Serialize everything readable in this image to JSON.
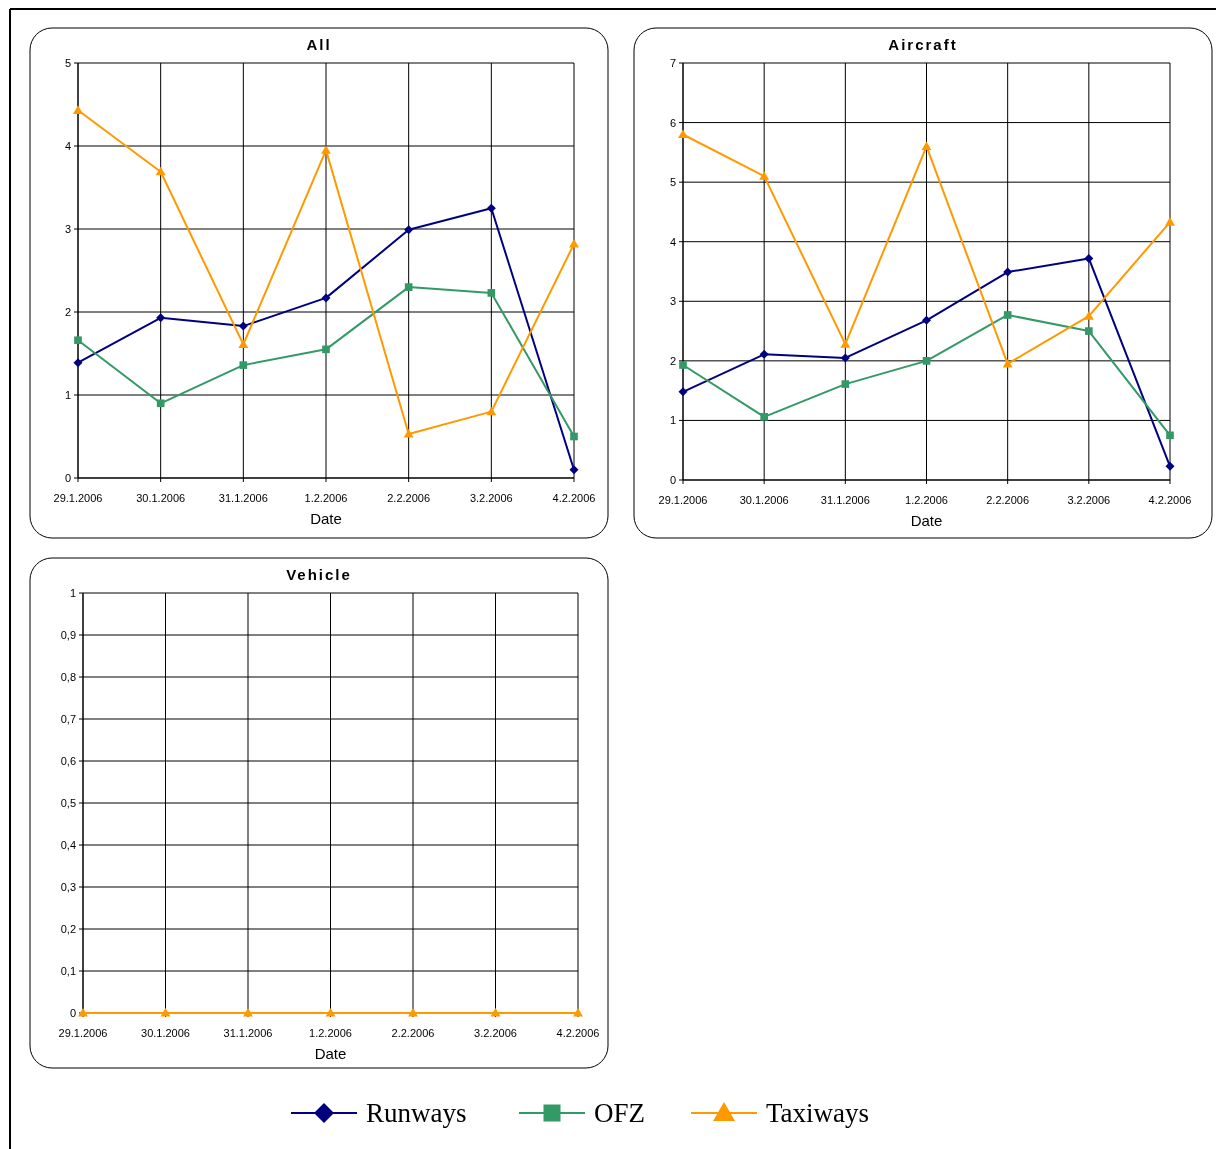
{
  "chart_data": [
    {
      "type": "line",
      "title": "All",
      "xlabel": "Date",
      "categories": [
        "29.1.2006",
        "30.1.2006",
        "31.1.2006",
        "1.2.2006",
        "2.2.2006",
        "3.2.2006",
        "4.2.2006"
      ],
      "ylim": [
        0,
        5
      ],
      "yticks": [
        0,
        1,
        2,
        3,
        4,
        5
      ],
      "grid": true,
      "legend": "bottom",
      "series": [
        {
          "name": "Runways",
          "color": "#000080",
          "marker": "diamond",
          "values": [
            1.39,
            1.93,
            1.83,
            2.17,
            2.99,
            3.25,
            0.1
          ]
        },
        {
          "name": "OFZ",
          "color": "#339966",
          "marker": "square",
          "values": [
            1.66,
            0.9,
            1.36,
            1.55,
            2.3,
            2.23,
            0.5
          ]
        },
        {
          "name": "Taxiways",
          "color": "#ff9900",
          "marker": "triangle",
          "values": [
            4.43,
            3.69,
            1.61,
            3.95,
            0.53,
            0.8,
            2.82
          ]
        }
      ]
    },
    {
      "type": "line",
      "title": "Aircraft",
      "xlabel": "Date",
      "categories": [
        "29.1.2006",
        "30.1.2006",
        "31.1.2006",
        "1.2.2006",
        "2.2.2006",
        "3.2.2006",
        "4.2.2006"
      ],
      "ylim": [
        0,
        7
      ],
      "yticks": [
        0,
        1,
        2,
        3,
        4,
        5,
        6,
        7
      ],
      "grid": true,
      "series": [
        {
          "color": "#000080",
          "marker": "diamond",
          "values": [
            1.48,
            2.11,
            2.05,
            2.68,
            3.49,
            3.72,
            0.23
          ]
        },
        {
          "color": "#339966",
          "marker": "square",
          "values": [
            1.93,
            1.06,
            1.61,
            2.0,
            2.77,
            2.5,
            0.75
          ]
        },
        {
          "color": "#ff9900",
          "marker": "triangle",
          "values": [
            5.8,
            5.1,
            2.28,
            5.6,
            1.95,
            2.75,
            4.33
          ]
        }
      ]
    },
    {
      "type": "line",
      "title": "Vehicle",
      "xlabel": "Date",
      "categories": [
        "29.1.2006",
        "30.1.2006",
        "31.1.2006",
        "1.2.2006",
        "2.2.2006",
        "3.2.2006",
        "4.2.2006"
      ],
      "ylim": [
        0,
        1
      ],
      "yticks": [
        0,
        {
          "value": 0.1,
          "label": "0,1"
        },
        {
          "value": 0.2,
          "label": "0,2"
        },
        {
          "value": 0.3,
          "label": "0,3"
        },
        {
          "value": 0.4,
          "label": "0,4"
        },
        {
          "value": 0.5,
          "label": "0,5"
        },
        {
          "value": 0.6,
          "label": "0,6"
        },
        {
          "value": 0.7,
          "label": "0,7"
        },
        {
          "value": 0.8,
          "label": "0,8"
        },
        {
          "value": 0.9,
          "label": "0,9"
        },
        1
      ],
      "grid": true,
      "series": [
        {
          "color": "#ff9900",
          "marker": "triangle",
          "values": [
            0,
            0,
            0,
            0,
            0,
            0,
            0
          ]
        }
      ]
    }
  ]
}
